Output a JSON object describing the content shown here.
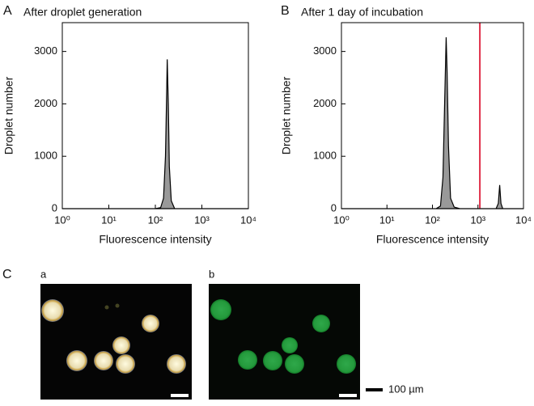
{
  "chart_data": [
    {
      "type": "area",
      "panel": "A",
      "title": "After droplet generation",
      "x_label": "Fluorescence intensity",
      "y_label": "Droplet number",
      "log_x": true,
      "xlim": [
        1,
        10000
      ],
      "xticks": [
        {
          "value": 1,
          "label": "10⁰"
        },
        {
          "value": 10,
          "label": "10¹"
        },
        {
          "value": 100,
          "label": "10²"
        },
        {
          "value": 1000,
          "label": "10³"
        },
        {
          "value": 10000,
          "label": "10⁴"
        }
      ],
      "ylim": [
        0,
        3550
      ],
      "yticks": [
        0,
        1000,
        2000,
        3000
      ],
      "x": [
        1,
        100,
        130,
        150,
        165,
        175,
        180,
        190,
        200,
        220,
        260,
        10000
      ],
      "series": [
        {
          "color": "#999999",
          "values": [
            0,
            0,
            20,
            200,
            1000,
            2200,
            2850,
            2000,
            800,
            150,
            0,
            0
          ]
        }
      ]
    },
    {
      "type": "area",
      "panel": "B",
      "title": "After 1 day of incubation",
      "x_label": "Fluorescence intensity",
      "y_label": "Droplet number",
      "log_x": true,
      "xlim": [
        1,
        10000
      ],
      "xticks": [
        {
          "value": 1,
          "label": "10⁰"
        },
        {
          "value": 10,
          "label": "10¹"
        },
        {
          "value": 100,
          "label": "10²"
        },
        {
          "value": 1000,
          "label": "10³"
        },
        {
          "value": 10000,
          "label": "10⁴"
        }
      ],
      "ylim": [
        0,
        3550
      ],
      "yticks": [
        0,
        1000,
        2000,
        3000
      ],
      "x": [
        1,
        120,
        150,
        170,
        185,
        200,
        210,
        225,
        250,
        300,
        400,
        2500,
        2800,
        3000,
        3200,
        3500,
        10000
      ],
      "series": [
        {
          "color": "#999999",
          "values": [
            0,
            0,
            50,
            600,
            2000,
            3270,
            2600,
            1200,
            200,
            30,
            0,
            0,
            100,
            450,
            100,
            0,
            0
          ]
        }
      ],
      "vlines": [
        {
          "x": 1100,
          "color": "#e0304a"
        }
      ]
    }
  ],
  "figure": {
    "panel": "C",
    "images": [
      {
        "label": "a"
      },
      {
        "label": "b"
      }
    ],
    "scale_bar": "100 µm"
  }
}
